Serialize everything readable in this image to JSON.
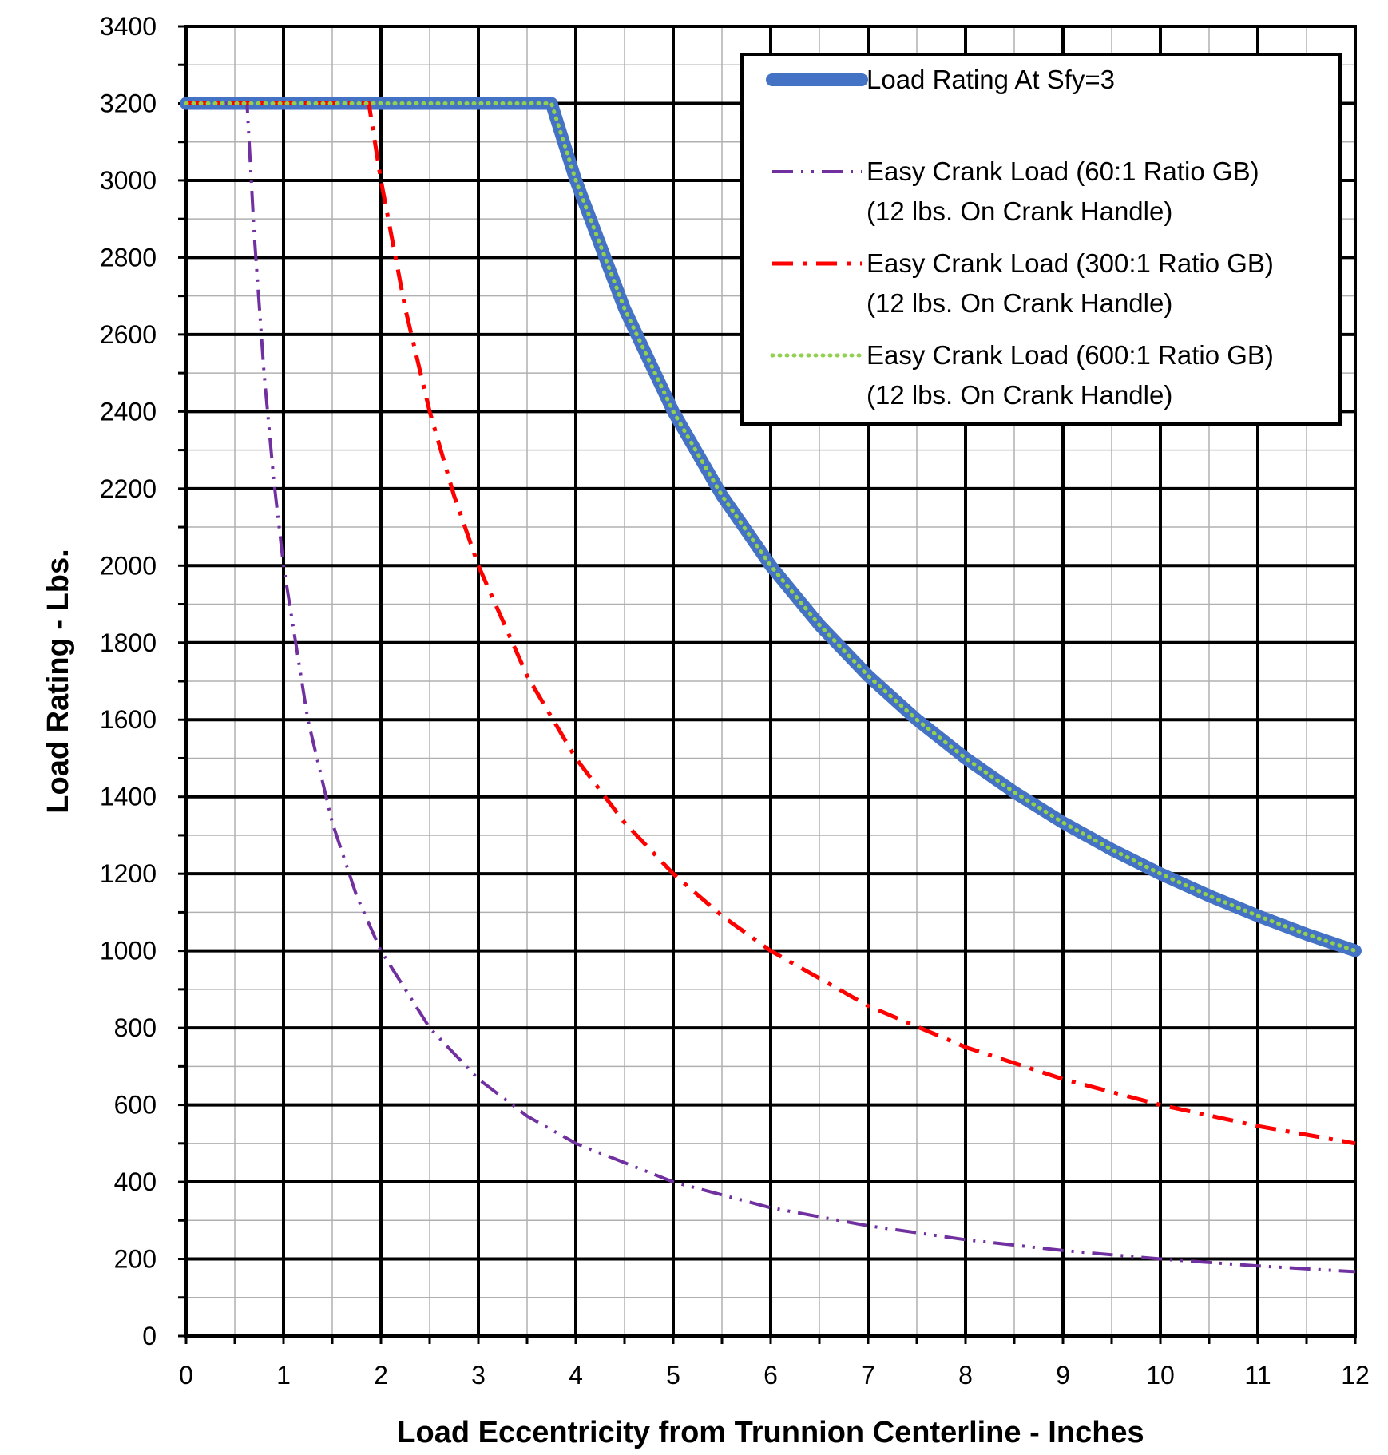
{
  "chart_data": {
    "type": "line",
    "title": "",
    "xlabel": "Load Eccentricity from Trunnion Centerline - Inches",
    "ylabel": "Load Rating - Lbs.",
    "xlim": [
      0,
      12
    ],
    "ylim": [
      0,
      3400
    ],
    "x_ticks": [
      "0",
      "1",
      "2",
      "3",
      "4",
      "5",
      "6",
      "7",
      "8",
      "9",
      "10",
      "11",
      "12"
    ],
    "y_ticks": [
      "0",
      "200",
      "400",
      "600",
      "800",
      "1000",
      "1200",
      "1400",
      "1600",
      "1800",
      "2000",
      "2200",
      "2400",
      "2600",
      "2800",
      "3000",
      "3200",
      "3400"
    ],
    "grid": true,
    "legend_position": "top-right",
    "series": [
      {
        "name": "Load Rating At Sfy=3",
        "color": "#4472c4",
        "style": "solid-thick",
        "x": [
          0,
          3.75,
          4,
          4.5,
          5,
          5.5,
          6,
          6.5,
          7,
          7.5,
          8,
          8.5,
          9,
          9.5,
          10,
          10.5,
          11,
          11.5,
          12
        ],
        "y": [
          3200,
          3200,
          3000,
          2667,
          2400,
          2182,
          2000,
          1846,
          1714,
          1600,
          1500,
          1412,
          1333,
          1263,
          1200,
          1143,
          1091,
          1043,
          1000
        ]
      },
      {
        "name": "Easy Crank Load (60:1 Ratio GB)",
        "name_line2": "(12 lbs. On Crank Handle)",
        "color": "#7030a0",
        "style": "dash-dot-dot",
        "x": [
          0,
          0.625,
          0.7,
          0.8,
          0.9,
          1,
          1.25,
          1.5,
          1.75,
          2,
          2.5,
          3,
          3.5,
          4,
          5,
          6,
          7,
          8,
          9,
          10,
          11,
          12
        ],
        "y": [
          3200,
          3200,
          2857,
          2500,
          2222,
          2000,
          1600,
          1333,
          1143,
          1000,
          800,
          667,
          571,
          500,
          400,
          333,
          286,
          250,
          222,
          200,
          182,
          167
        ]
      },
      {
        "name": "Easy Crank Load (300:1 Ratio GB)",
        "name_line2": "(12 lbs. On Crank Handle)",
        "color": "#ff0000",
        "style": "dash-dot",
        "x": [
          0,
          1.875,
          2,
          2.25,
          2.5,
          2.75,
          3,
          3.5,
          4,
          4.5,
          5,
          5.5,
          6,
          7,
          8,
          9,
          10,
          11,
          12
        ],
        "y": [
          3200,
          3200,
          3000,
          2667,
          2400,
          2182,
          2000,
          1714,
          1500,
          1333,
          1200,
          1091,
          1000,
          857,
          750,
          667,
          600,
          545,
          500
        ]
      },
      {
        "name": "Easy Crank Load (600:1 Ratio GB)",
        "name_line2": "(12 lbs. On Crank Handle)",
        "color": "#92d050",
        "style": "dotted",
        "x": [
          0,
          3.75,
          4,
          4.5,
          5,
          5.5,
          6,
          6.5,
          7,
          7.5,
          8,
          8.5,
          9,
          9.5,
          10,
          10.5,
          11,
          11.5,
          12
        ],
        "y": [
          3200,
          3200,
          3000,
          2667,
          2400,
          2182,
          2000,
          1846,
          1714,
          1600,
          1500,
          1412,
          1333,
          1263,
          1200,
          1143,
          1091,
          1043,
          1000
        ]
      }
    ]
  }
}
